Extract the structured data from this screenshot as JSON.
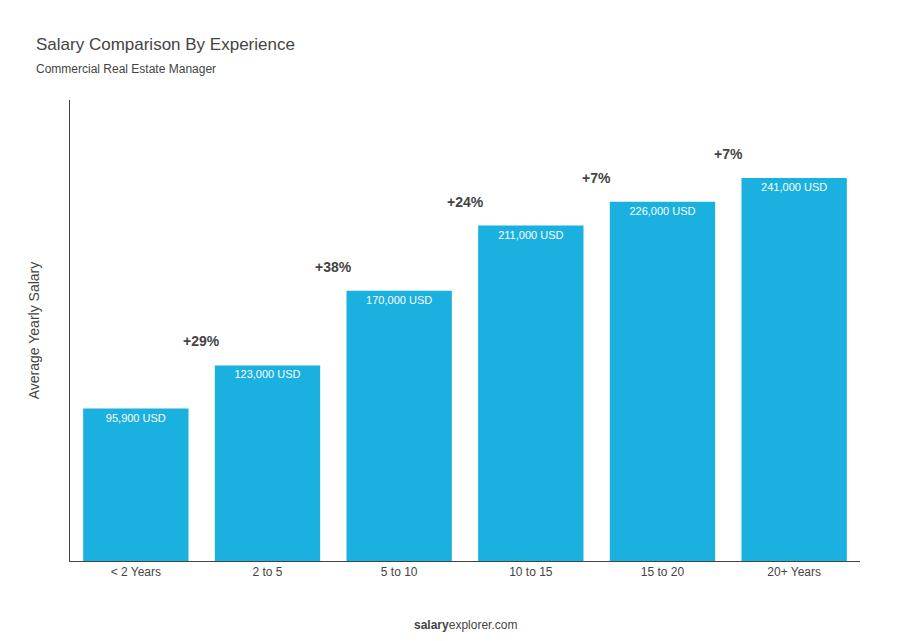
{
  "chart_data": {
    "type": "bar",
    "title": "Salary Comparison By Experience",
    "subtitle": "Commercial Real Estate Manager",
    "ylabel": "Average Yearly Salary",
    "categories": [
      "< 2 Years",
      "2 to 5",
      "5 to 10",
      "10 to 15",
      "15 to 20",
      "20+ Years"
    ],
    "values": [
      95900,
      123000,
      170000,
      211000,
      226000,
      241000
    ],
    "value_labels": [
      "95,900 USD",
      "123,000 USD",
      "170,000 USD",
      "211,000 USD",
      "226,000 USD",
      "241,000 USD"
    ],
    "data_labels": true,
    "color": "#1ab0e0",
    "ylim": [
      0,
      290000
    ],
    "yticks": [],
    "tick_labels": "x",
    "grid": false,
    "annotations": [
      {
        "text": "+29%",
        "category": "2 to 5"
      },
      {
        "text": "+38%",
        "category": "5 to 10"
      },
      {
        "text": "+24%",
        "category": "10 to 15"
      },
      {
        "text": "+7%",
        "category": "15 to 20"
      },
      {
        "text": "+7%",
        "category": "20+ Years"
      }
    ],
    "source": {
      "bold": "salary",
      "normal": "explorer.com"
    }
  }
}
